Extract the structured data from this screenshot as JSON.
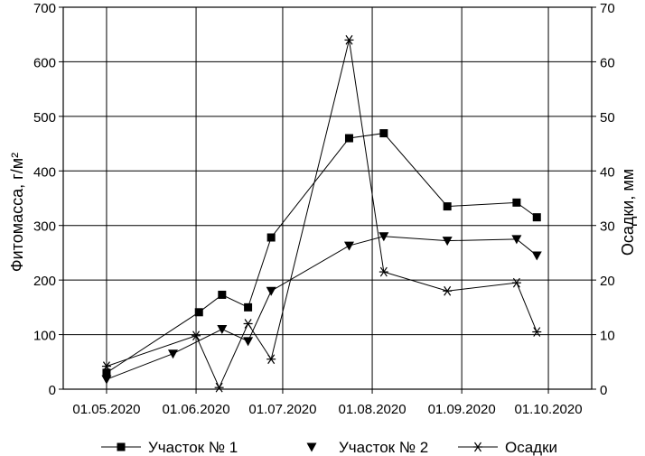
{
  "chart_data": {
    "type": "line",
    "x_ticks": [
      "01.05.2020",
      "01.06.2020",
      "01.07.2020",
      "01.08.2020",
      "01.09.2020",
      "01.10.2020"
    ],
    "y_left_label": "Фитомасса, г/м²",
    "y_right_label": "Осадки, мм",
    "y_left_range": [
      0,
      700
    ],
    "y_right_range": [
      0,
      70
    ],
    "y_left_ticks": [
      "0",
      "100",
      "200",
      "300",
      "400",
      "500",
      "600",
      "700"
    ],
    "y_right_ticks": [
      "0",
      "10",
      "20",
      "30",
      "40",
      "50",
      "60",
      "70"
    ],
    "grid": true,
    "legend_position": "bottom",
    "series": [
      {
        "name": "Участок № 1",
        "axis": "left",
        "marker": "square",
        "x": [
          "01.05.2020",
          "02.06.2020",
          "10.06.2020",
          "19.06.2020",
          "27.06.2020",
          "24.07.2020",
          "05.08.2020",
          "27.08.2020",
          "20.09.2020",
          "27.09.2020"
        ],
        "y": [
          30,
          141,
          173,
          150,
          278,
          460,
          469,
          335,
          342,
          315
        ]
      },
      {
        "name": "Участок № 2",
        "axis": "left",
        "marker": "triangle-down",
        "x": [
          "01.05.2020",
          "24.05.2020",
          "10.06.2020",
          "19.06.2020",
          "27.06.2020",
          "24.07.2020",
          "05.08.2020",
          "27.08.2020",
          "20.09.2020",
          "27.09.2020"
        ],
        "y": [
          18,
          65,
          110,
          88,
          180,
          263,
          280,
          272,
          275,
          245
        ]
      },
      {
        "name": "Осадки",
        "axis": "right",
        "marker": "asterisk",
        "x": [
          "01.05.2020",
          "01.06.2020",
          "09.06.2020",
          "19.06.2020",
          "27.06.2020",
          "24.07.2020",
          "05.08.2020",
          "27.08.2020",
          "20.09.2020",
          "27.09.2020"
        ],
        "y": [
          4.2,
          9.8,
          0.3,
          12,
          5.5,
          64,
          21.5,
          18,
          19.5,
          10.5
        ]
      }
    ]
  }
}
